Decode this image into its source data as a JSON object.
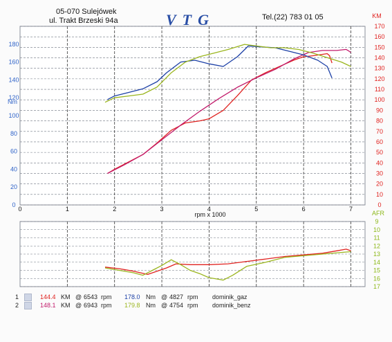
{
  "header": {
    "address_line1": "05-070 Sulejówek",
    "address_line2": "ul. Trakt Brzeski 94a",
    "logo_text": "VTG",
    "phone": "Tel.(22) 783 01 05"
  },
  "chart_data": [
    {
      "type": "line",
      "x_label": "rpm x 1000",
      "x_range": [
        0,
        7.3
      ],
      "x_ticks": [
        0,
        1,
        2,
        3,
        4,
        5,
        6,
        7
      ],
      "y_left_label": "Nm",
      "y_left_range": [
        0,
        200
      ],
      "y_left_ticks": [
        0,
        20,
        40,
        60,
        80,
        100,
        120,
        140,
        160,
        180
      ],
      "y_right_label": "KM",
      "y_right_range": [
        0,
        170
      ],
      "y_right_ticks": [
        0,
        10,
        20,
        30,
        40,
        50,
        60,
        70,
        80,
        90,
        100,
        110,
        120,
        130,
        140,
        150,
        160,
        170
      ],
      "grid": true,
      "series": [
        {
          "name": "KM 1",
          "axis": "right",
          "color": "#e0221f",
          "x": [
            1.85,
            2.0,
            2.3,
            2.6,
            2.9,
            3.2,
            3.5,
            3.8,
            4.0,
            4.3,
            4.6,
            4.9,
            5.2,
            5.5,
            5.8,
            6.0,
            6.2,
            6.5,
            6.55,
            6.6
          ],
          "y": [
            30,
            34,
            41,
            48,
            59,
            71,
            78,
            80,
            82,
            90,
            104,
            119,
            126,
            132,
            138,
            141,
            142,
            144,
            142,
            135
          ]
        },
        {
          "name": "KM 2",
          "axis": "right",
          "color": "#c21b6b",
          "x": [
            1.85,
            2.2,
            2.6,
            3.0,
            3.4,
            3.8,
            4.2,
            4.6,
            5.0,
            5.4,
            5.8,
            6.1,
            6.4,
            6.7,
            6.9,
            6.94,
            7.0
          ],
          "y": [
            30,
            38,
            48,
            62,
            76,
            89,
            101,
            112,
            121,
            129,
            139,
            145,
            147,
            147,
            148,
            147,
            145
          ]
        },
        {
          "name": "Nm 1",
          "axis": "left",
          "color": "#1b3fa6",
          "x": [
            1.85,
            2.0,
            2.3,
            2.6,
            2.9,
            3.1,
            3.4,
            3.7,
            4.0,
            4.3,
            4.6,
            4.83,
            5.1,
            5.4,
            5.7,
            6.0,
            6.3,
            6.5,
            6.6
          ],
          "y": [
            118,
            122,
            126,
            130,
            138,
            148,
            160,
            162,
            158,
            155,
            166,
            178,
            177,
            176,
            172,
            168,
            162,
            155,
            142
          ]
        },
        {
          "name": "Nm 2",
          "axis": "left",
          "color": "#9ab51d",
          "x": [
            1.8,
            2.0,
            2.3,
            2.6,
            2.9,
            3.2,
            3.5,
            3.8,
            4.1,
            4.4,
            4.75,
            5.0,
            5.3,
            5.6,
            5.9,
            6.2,
            6.5,
            6.8,
            7.0
          ],
          "y": [
            115,
            120,
            122,
            124,
            132,
            148,
            160,
            166,
            170,
            174,
            179.8,
            178,
            176,
            176,
            174,
            170,
            165,
            160,
            155
          ]
        }
      ]
    },
    {
      "type": "line",
      "y_right_label": "AFR",
      "y_right_range": [
        9,
        17
      ],
      "y_right_inverted": true,
      "y_right_ticks": [
        9,
        10,
        11,
        12,
        13,
        14,
        15,
        16,
        17
      ],
      "x_range": [
        0,
        7.3
      ],
      "grid": true,
      "series": [
        {
          "name": "AFR 1",
          "color": "#e0221f",
          "x": [
            1.8,
            2.1,
            2.4,
            2.7,
            2.9,
            3.1,
            3.3,
            3.6,
            4.0,
            4.4,
            4.8,
            5.2,
            5.6,
            6.0,
            6.4,
            6.7,
            6.9,
            7.0
          ],
          "y": [
            14.6,
            14.8,
            15.1,
            15.5,
            15.1,
            14.7,
            14.2,
            14.3,
            14.3,
            14.2,
            13.9,
            13.6,
            13.3,
            13.1,
            12.9,
            12.6,
            12.4,
            12.6
          ]
        },
        {
          "name": "AFR 2",
          "color": "#9ab51d",
          "x": [
            1.8,
            2.1,
            2.4,
            2.6,
            2.8,
            3.0,
            3.2,
            3.4,
            3.6,
            3.8,
            4.0,
            4.2,
            4.3,
            4.5,
            4.8,
            5.2,
            5.6,
            6.0,
            6.4,
            6.8,
            7.0
          ],
          "y": [
            14.7,
            15.0,
            15.3,
            15.6,
            15.0,
            14.4,
            13.7,
            14.3,
            15.0,
            15.4,
            15.9,
            16.1,
            16.2,
            15.6,
            14.5,
            14.0,
            13.4,
            13.2,
            13.0,
            12.8,
            12.7
          ]
        }
      ]
    }
  ],
  "legend": [
    {
      "index": "1",
      "power_value": "144.4",
      "power_unit": "KM",
      "power_rpm_value": "6543",
      "torque_value": "178.0",
      "torque_unit": "Nm",
      "torque_rpm_value": "4827",
      "at": "@",
      "rpm_unit": "rpm",
      "name": "dominik_gaz"
    },
    {
      "index": "2",
      "power_value": "148.1",
      "power_unit": "KM",
      "power_rpm_value": "6943",
      "torque_value": "179.8",
      "torque_unit": "Nm",
      "torque_rpm_value": "4754",
      "at": "@",
      "rpm_unit": "rpm",
      "name": "dominik_benz"
    }
  ],
  "colors": {
    "grid": "#6e7480",
    "axis_left": "#2f63c8",
    "axis_right": "#e0221f",
    "axis_afr": "#8db81a",
    "frame": "#8a8f9a"
  }
}
